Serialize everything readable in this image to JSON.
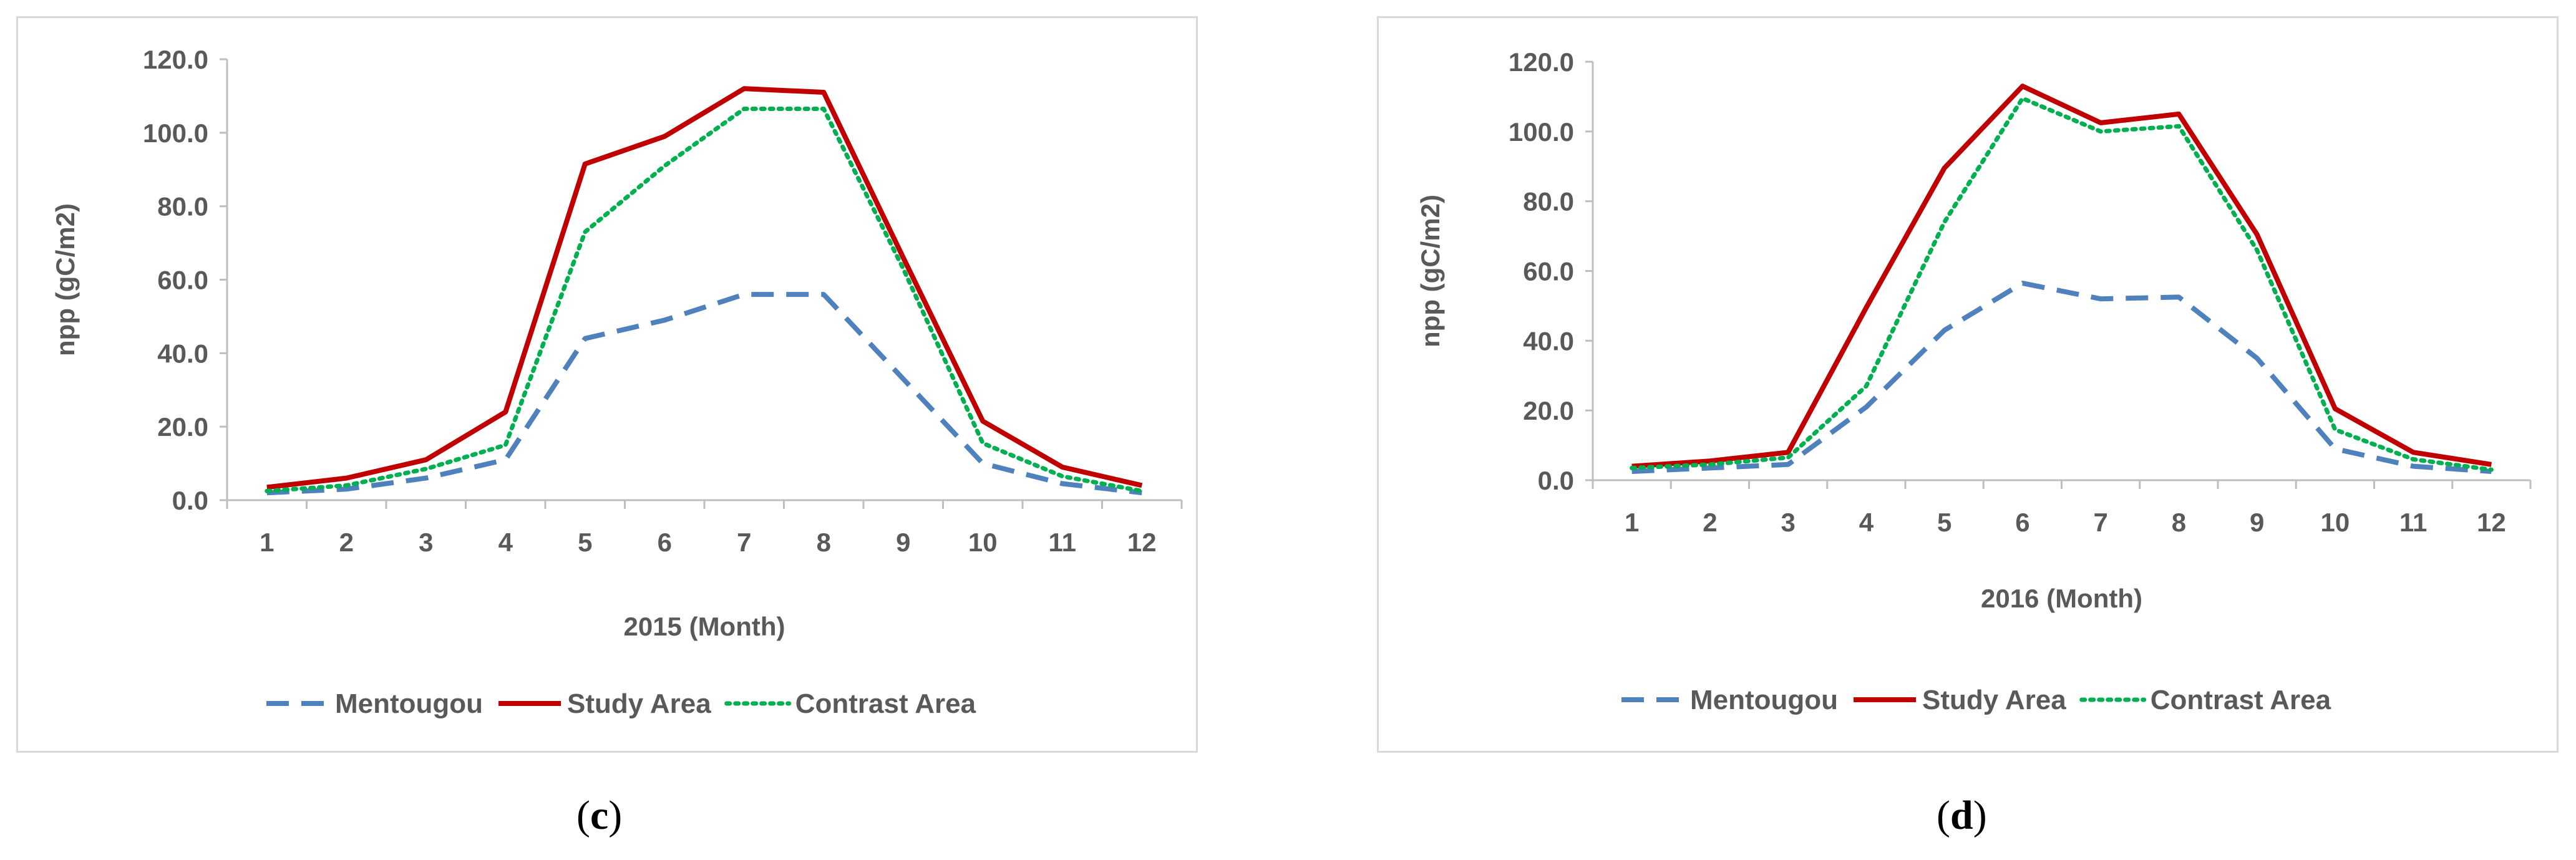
{
  "chart_data": [
    {
      "type": "line",
      "panel_label": "c",
      "title": "",
      "xlabel": "2015 (Month)",
      "ylabel": "npp (gC/m2)",
      "categories": [
        "1",
        "2",
        "3",
        "4",
        "5",
        "6",
        "7",
        "8",
        "9",
        "10",
        "11",
        "12"
      ],
      "ylim": [
        0,
        120
      ],
      "yticks": [
        "0.0",
        "20.0",
        "40.0",
        "60.0",
        "80.0",
        "100.0",
        "120.0"
      ],
      "grid": false,
      "legend_position": "bottom",
      "series": [
        {
          "name": "Mentougou",
          "color": "#4f81bd",
          "style": "dashed",
          "values": [
            2.0,
            3.0,
            6.0,
            11.0,
            44.0,
            49.0,
            56.0,
            56.0,
            33.0,
            10.0,
            4.5,
            2.0
          ]
        },
        {
          "name": "Study Area",
          "color": "#c00000",
          "style": "solid",
          "values": [
            3.5,
            6.0,
            11.0,
            24.0,
            91.5,
            99.0,
            112.0,
            111.0,
            66.0,
            21.5,
            9.0,
            4.0
          ]
        },
        {
          "name": "Contrast Area",
          "color": "#00b050",
          "style": "dotted",
          "values": [
            2.5,
            4.0,
            8.5,
            15.0,
            73.0,
            91.0,
            106.5,
            106.5,
            63.0,
            15.5,
            6.5,
            2.5
          ]
        }
      ]
    },
    {
      "type": "line",
      "panel_label": "d",
      "title": "",
      "xlabel": "2016 (Month)",
      "ylabel": "npp (gC/m2)",
      "categories": [
        "1",
        "2",
        "3",
        "4",
        "5",
        "6",
        "7",
        "8",
        "9",
        "10",
        "11",
        "12"
      ],
      "ylim": [
        0,
        120
      ],
      "yticks": [
        "0.0",
        "20.0",
        "40.0",
        "60.0",
        "80.0",
        "100.0",
        "120.0"
      ],
      "grid": false,
      "legend_position": "bottom",
      "series": [
        {
          "name": "Mentougou",
          "color": "#4f81bd",
          "style": "dashed",
          "values": [
            2.5,
            3.5,
            4.5,
            21.0,
            43.0,
            56.5,
            52.0,
            52.5,
            35.0,
            9.0,
            4.0,
            2.5
          ]
        },
        {
          "name": "Study Area",
          "color": "#c00000",
          "style": "solid",
          "values": [
            4.0,
            5.5,
            8.0,
            49.5,
            89.5,
            113.0,
            102.5,
            105.0,
            70.5,
            20.5,
            8.0,
            4.5
          ]
        },
        {
          "name": "Contrast Area",
          "color": "#00b050",
          "style": "dotted",
          "values": [
            3.5,
            4.5,
            6.5,
            27.0,
            74.0,
            109.5,
            100.0,
            101.5,
            66.0,
            14.5,
            6.0,
            3.0
          ]
        }
      ]
    }
  ]
}
